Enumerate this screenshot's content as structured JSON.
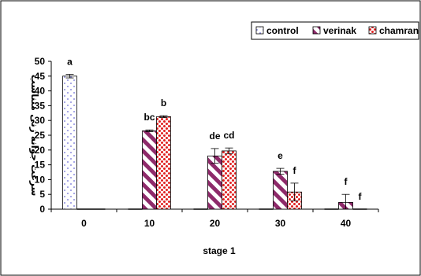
{
  "chart_data": {
    "type": "bar",
    "xlabel": "stage 1",
    "ylabel": "سرعت جوانه زنی متناسب",
    "categories": [
      "0",
      "10",
      "20",
      "30",
      "40"
    ],
    "ylim": [
      0,
      50
    ],
    "yticks": [
      0,
      5,
      10,
      15,
      20,
      25,
      30,
      35,
      40,
      45,
      50
    ],
    "grid": false,
    "legend_position": "top-right",
    "series": [
      {
        "name": "control",
        "pattern": "dotted",
        "color": "#6b6bd6",
        "values": [
          45,
          0,
          0,
          0,
          0
        ],
        "errors": [
          0.6,
          0,
          0,
          0,
          0
        ],
        "labels": [
          "a",
          "",
          "",
          "",
          ""
        ]
      },
      {
        "name": "verinak",
        "pattern": "diagonal-stripes",
        "color": "#8e2a6a",
        "values": [
          0,
          26.5,
          18,
          12.8,
          2.3
        ],
        "errors": [
          0,
          0.3,
          2.5,
          1.0,
          2.7
        ],
        "labels": [
          "",
          "bc",
          "de",
          "e",
          "f"
        ]
      },
      {
        "name": "chamran",
        "pattern": "red-dots",
        "color": "#e02020",
        "values": [
          0,
          31.3,
          19.7,
          5.8,
          0
        ],
        "errors": [
          0,
          0.3,
          1.0,
          3.0,
          0
        ],
        "labels": [
          "",
          "b",
          "cd",
          "f",
          "f"
        ]
      }
    ]
  }
}
